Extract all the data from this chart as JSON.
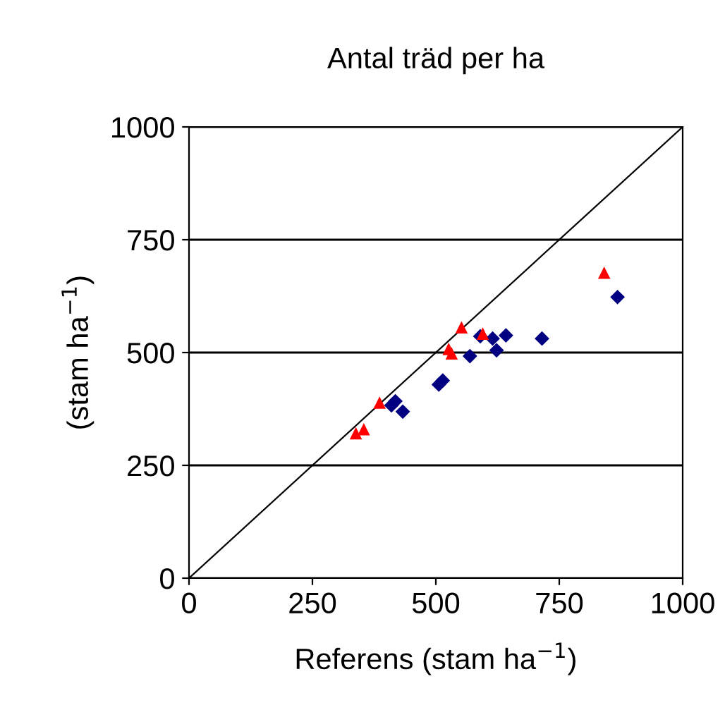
{
  "chart_data": {
    "type": "scatter",
    "title": "Antal träd per ha",
    "xlabel": "Referens (stam ha$^{−1}$)",
    "ylabel": "(stam ha$^{−1}$)",
    "xlim": [
      0,
      1000
    ],
    "ylim": [
      0,
      1000
    ],
    "xticks": [
      0,
      250,
      500,
      750,
      1000
    ],
    "yticks": [
      0,
      250,
      500,
      750,
      1000
    ],
    "grid": "y",
    "series": [
      {
        "color": "#000080",
        "marker": "diamond",
        "x": [
          868,
          715,
          642,
          615,
          590,
          623,
          569,
          514,
          506,
          418,
          410,
          433
        ],
        "values": [
          623,
          531,
          538,
          531,
          536,
          505,
          492,
          438,
          429,
          392,
          383,
          369
        ]
      },
      {
        "color": "#ff0000",
        "marker": "triangle",
        "x": [
          841,
          552,
          595,
          526,
          532,
          386,
          354,
          338
        ],
        "values": [
          677,
          556,
          542,
          508,
          498,
          389,
          330,
          321
        ]
      },
      {
        "type": "line",
        "color": "#000000",
        "marker": "none",
        "x": [
          0,
          1000
        ],
        "values": [
          0,
          1000
        ]
      }
    ]
  }
}
